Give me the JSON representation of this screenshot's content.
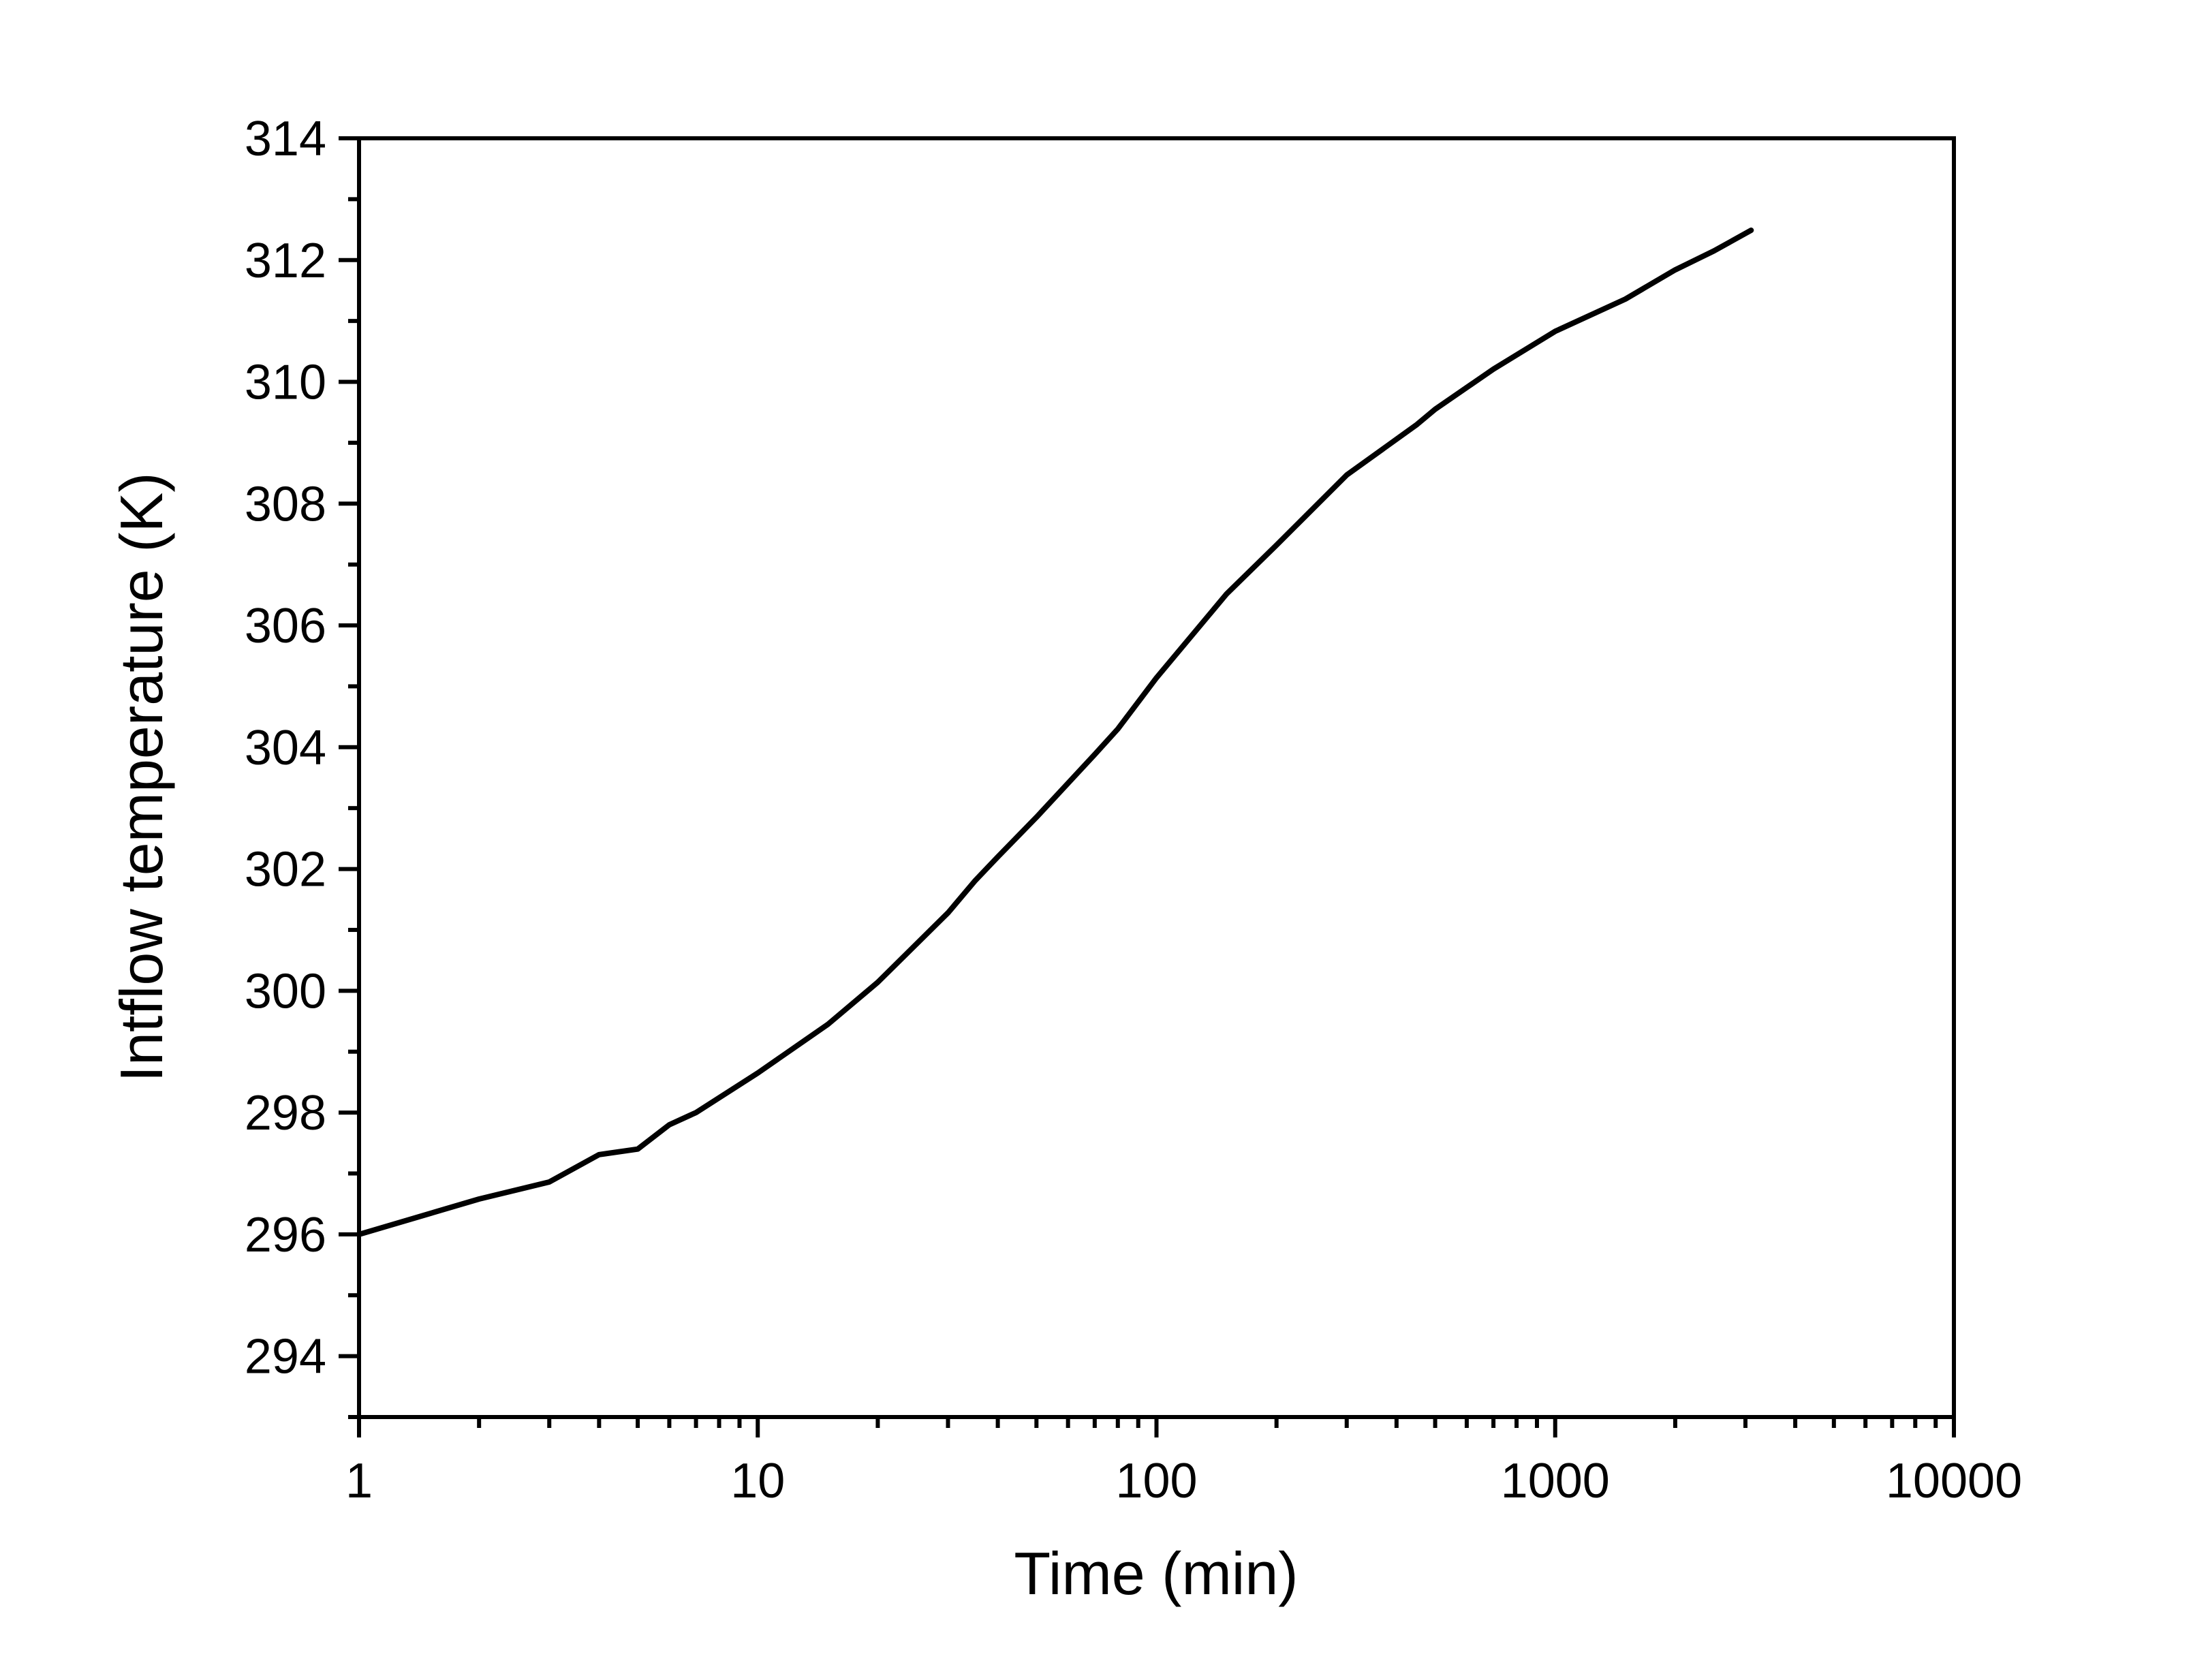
{
  "chart_data": {
    "type": "line",
    "title": "",
    "xlabel": "Time (min)",
    "ylabel": "Intflow temperature (K)",
    "xscale": "log",
    "xlim": [
      1,
      10000
    ],
    "ylim": [
      293,
      314
    ],
    "grid": false,
    "legend": null,
    "x_ticks": [
      1,
      10,
      100,
      1000,
      10000
    ],
    "x_tick_labels": [
      "1",
      "10",
      "100",
      "1000",
      "10000"
    ],
    "y_ticks": [
      294,
      296,
      298,
      300,
      302,
      304,
      306,
      308,
      310,
      312,
      314
    ],
    "y_tick_labels": [
      "294",
      "296",
      "298",
      "300",
      "302",
      "304",
      "306",
      "308",
      "310",
      "312",
      "314"
    ],
    "series": [
      {
        "name": "Intflow temperature",
        "color": "#000000",
        "x": [
          1,
          2,
          3,
          4,
          5,
          6,
          7,
          10,
          15,
          20,
          30,
          35,
          40,
          50,
          70,
          80,
          100,
          150,
          200,
          300,
          450,
          500,
          700,
          1000,
          1500,
          2000,
          2500,
          3100
        ],
        "y": [
          296.0,
          296.58,
          296.86,
          297.31,
          297.4,
          297.8,
          298.0,
          298.65,
          299.45,
          300.14,
          301.28,
          301.8,
          302.2,
          302.85,
          303.88,
          304.3,
          305.14,
          306.52,
          307.32,
          308.47,
          309.3,
          309.55,
          310.21,
          310.83,
          311.36,
          311.84,
          312.15,
          312.49
        ]
      }
    ]
  },
  "figure": {
    "frame_color": "#000000",
    "background": "#ffffff"
  }
}
